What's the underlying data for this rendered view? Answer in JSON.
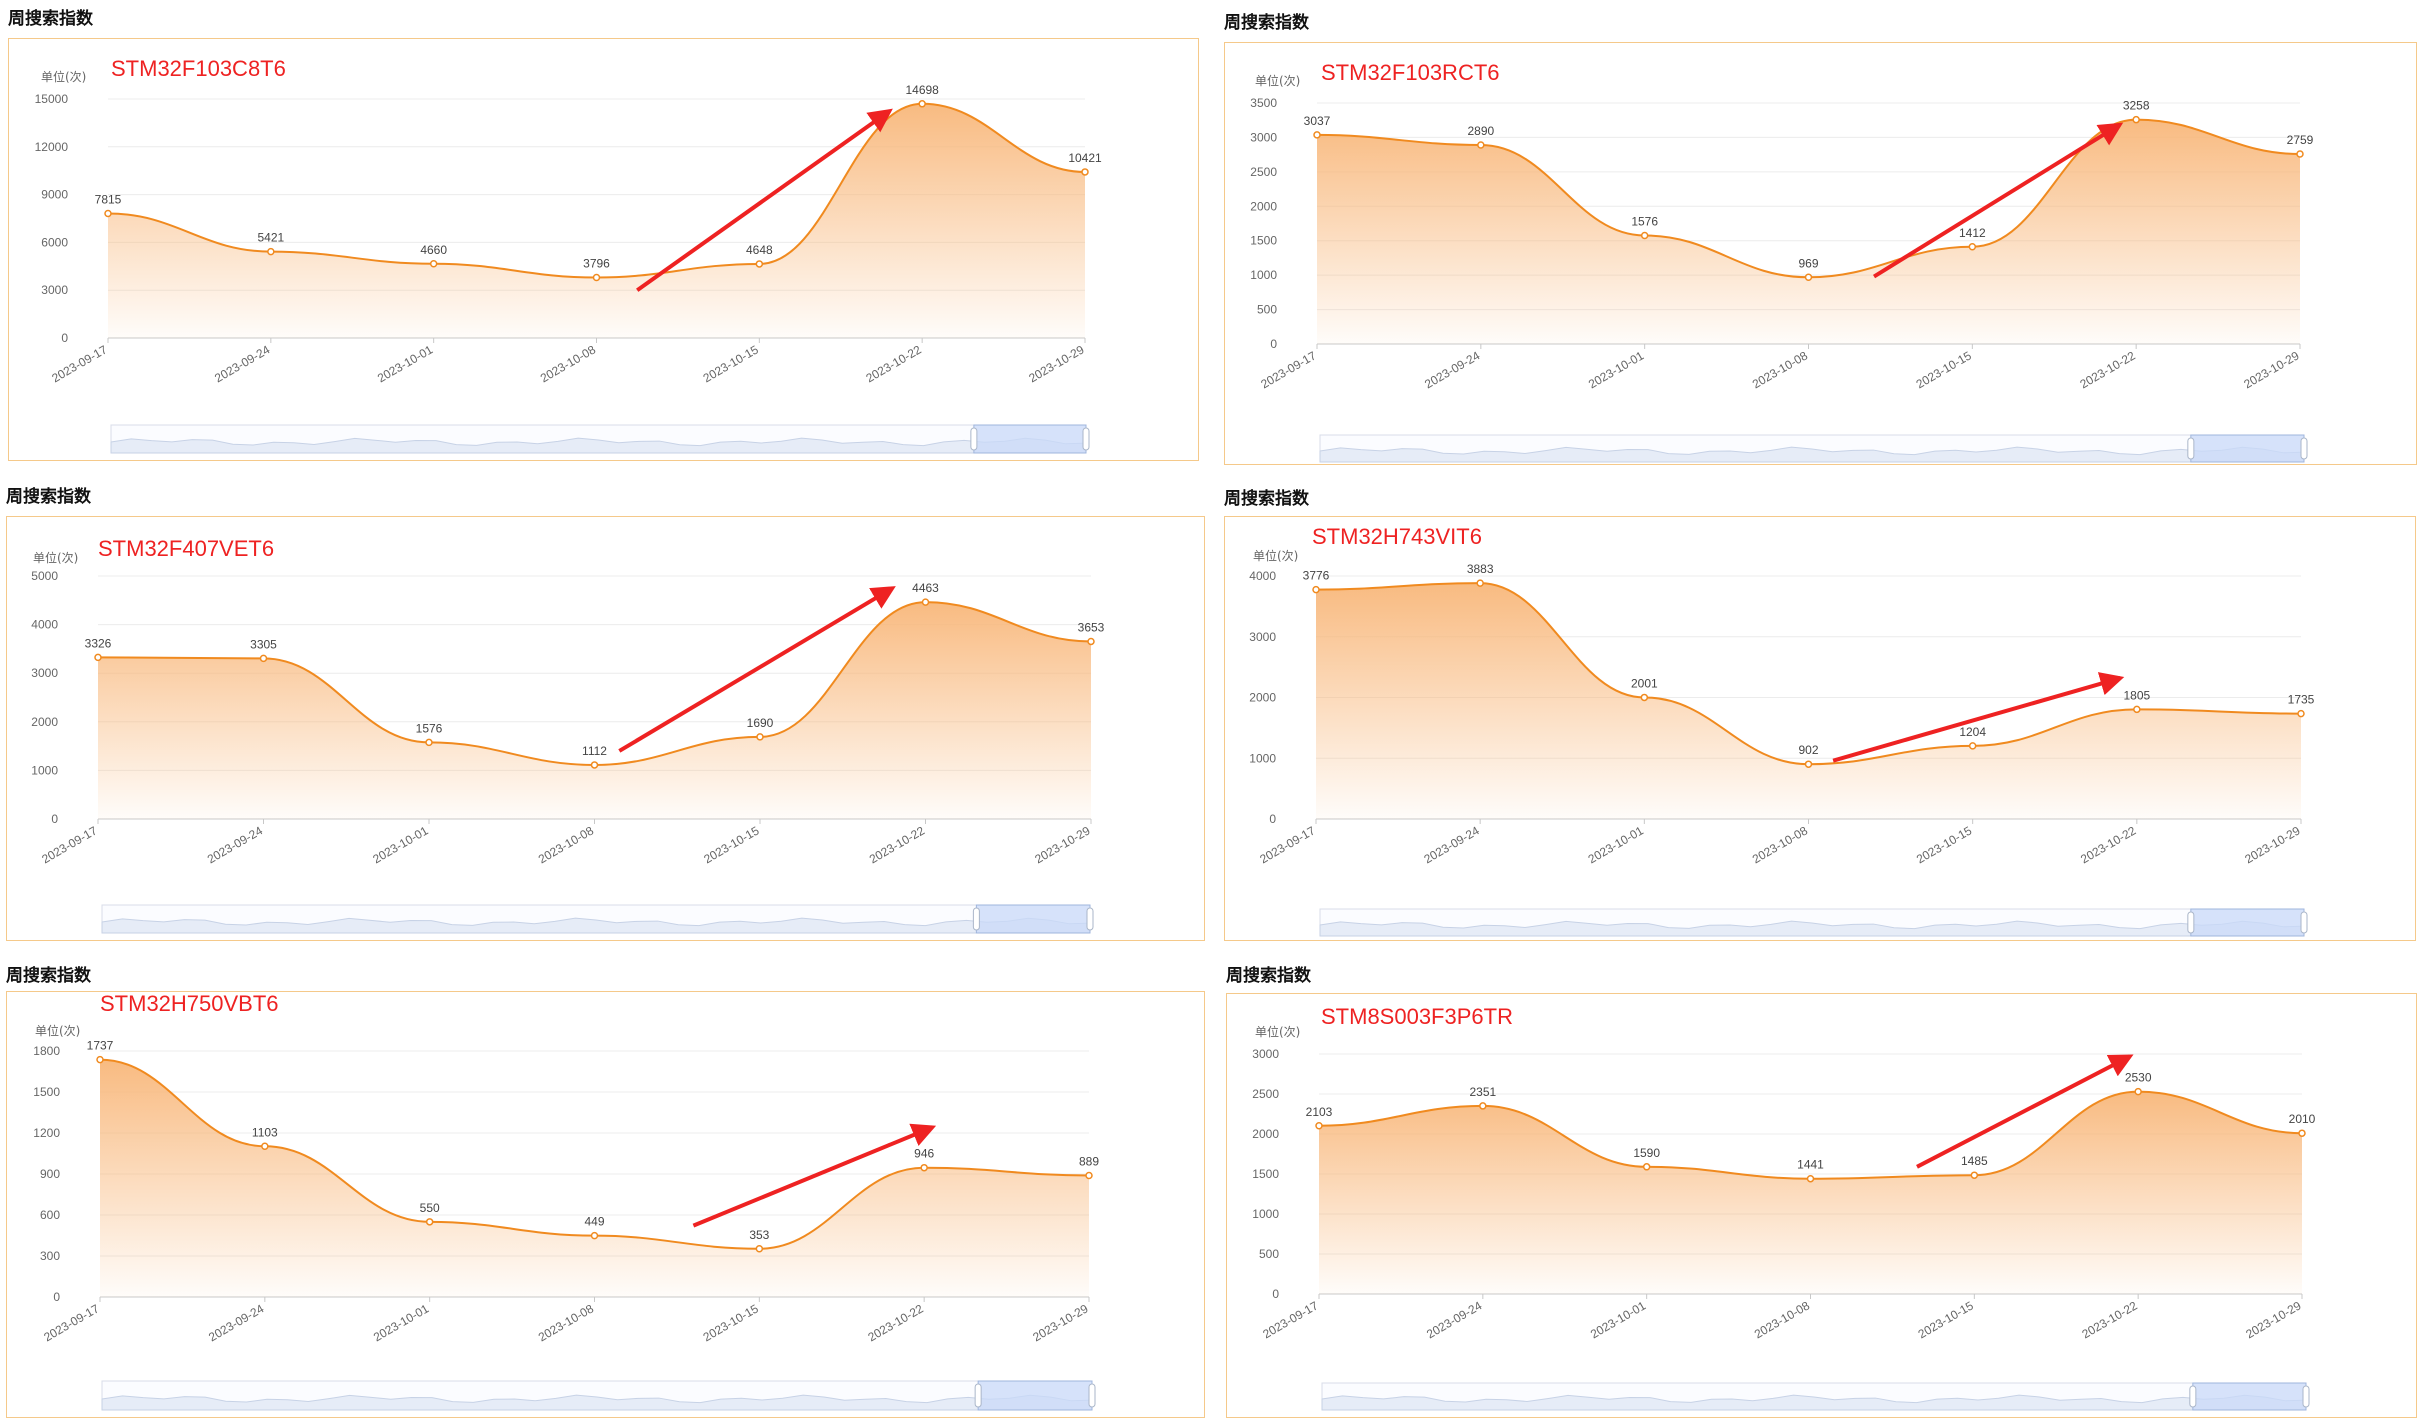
{
  "section_title": "周搜索指数",
  "unit_label": "单位(次)",
  "colors": {
    "line": "#f08a1f",
    "area_top": "#f8b77a",
    "arrow": "#ee2222",
    "border": "#f5c98a",
    "zoom_fill": "#c9daf8"
  },
  "chart_data": [
    {
      "type": "area",
      "title": "STM32F103C8T6",
      "ylabel": "单位(次)",
      "ylim": [
        0,
        15000
      ],
      "yticks": [
        0,
        3000,
        6000,
        9000,
        12000,
        15000
      ],
      "x": [
        "2023-09-17",
        "2023-09-24",
        "2023-10-01",
        "2023-10-08",
        "2023-10-15",
        "2023-10-22",
        "2023-10-29"
      ],
      "values": [
        7815,
        5421,
        4660,
        3796,
        4648,
        14698,
        10421
      ],
      "annotation": "trend-arrow from 2023-10-08 to 2023-10-22",
      "arrow": [
        3.25,
        0.2,
        4.8,
        0.95
      ]
    },
    {
      "type": "area",
      "title": "STM32F103RCT6",
      "ylabel": "单位(次)",
      "ylim": [
        0,
        3500
      ],
      "yticks": [
        0,
        500,
        1000,
        1500,
        2000,
        2500,
        3000,
        3500
      ],
      "x": [
        "2023-09-17",
        "2023-09-24",
        "2023-10-01",
        "2023-10-08",
        "2023-10-15",
        "2023-10-22",
        "2023-10-29"
      ],
      "values": [
        3037,
        2890,
        1576,
        969,
        1412,
        3258,
        2759
      ],
      "annotation": "trend-arrow from 2023-10-08 to 2023-10-22",
      "arrow": [
        3.4,
        0.28,
        4.9,
        0.91
      ]
    },
    {
      "type": "area",
      "title": "STM32F407VET6",
      "ylabel": "单位(次)",
      "ylim": [
        0,
        5000
      ],
      "yticks": [
        0,
        1000,
        2000,
        3000,
        4000,
        5000
      ],
      "x": [
        "2023-09-17",
        "2023-09-24",
        "2023-10-01",
        "2023-10-08",
        "2023-10-15",
        "2023-10-22",
        "2023-10-29"
      ],
      "values": [
        3326,
        3305,
        1576,
        1112,
        1690,
        4463,
        3653
      ],
      "annotation": "trend-arrow from 2023-10-08 to 2023-10-22",
      "arrow": [
        3.15,
        0.28,
        4.8,
        0.95
      ]
    },
    {
      "type": "area",
      "title": "STM32H743VIT6",
      "ylabel": "单位(次)",
      "ylim": [
        0,
        4000
      ],
      "yticks": [
        0,
        1000,
        2000,
        3000,
        4000
      ],
      "x": [
        "2023-09-17",
        "2023-09-24",
        "2023-10-01",
        "2023-10-08",
        "2023-10-15",
        "2023-10-22",
        "2023-10-29"
      ],
      "values": [
        3776,
        3883,
        2001,
        902,
        1204,
        1805,
        1735
      ],
      "annotation": "trend-arrow from 2023-10-08 to 2023-10-22",
      "arrow": [
        3.15,
        0.24,
        4.9,
        0.58
      ]
    },
    {
      "type": "area",
      "title": "STM32H750VBT6",
      "ylabel": "单位(次)",
      "ylim": [
        0,
        1800
      ],
      "yticks": [
        0,
        300,
        600,
        900,
        1200,
        1500,
        1800
      ],
      "x": [
        "2023-09-17",
        "2023-09-24",
        "2023-10-01",
        "2023-10-08",
        "2023-10-15",
        "2023-10-22",
        "2023-10-29"
      ],
      "values": [
        1737,
        1103,
        550,
        449,
        353,
        946,
        889
      ],
      "annotation": "trend-arrow from 2023-10-08 to 2023-10-22",
      "arrow": [
        3.6,
        0.29,
        5.05,
        0.69
      ]
    },
    {
      "type": "area",
      "title": "STM8S003F3P6TR",
      "ylabel": "单位(次)",
      "ylim": [
        0,
        3000
      ],
      "yticks": [
        0,
        500,
        1000,
        1500,
        2000,
        2500,
        3000
      ],
      "x": [
        "2023-09-17",
        "2023-09-24",
        "2023-10-01",
        "2023-10-08",
        "2023-10-15",
        "2023-10-22",
        "2023-10-29"
      ],
      "values": [
        2103,
        2351,
        1590,
        1441,
        1485,
        2530,
        2010
      ],
      "annotation": "trend-arrow from 2023-10-08 to 2023-10-22",
      "arrow": [
        3.65,
        0.53,
        4.95,
        0.99
      ]
    }
  ]
}
